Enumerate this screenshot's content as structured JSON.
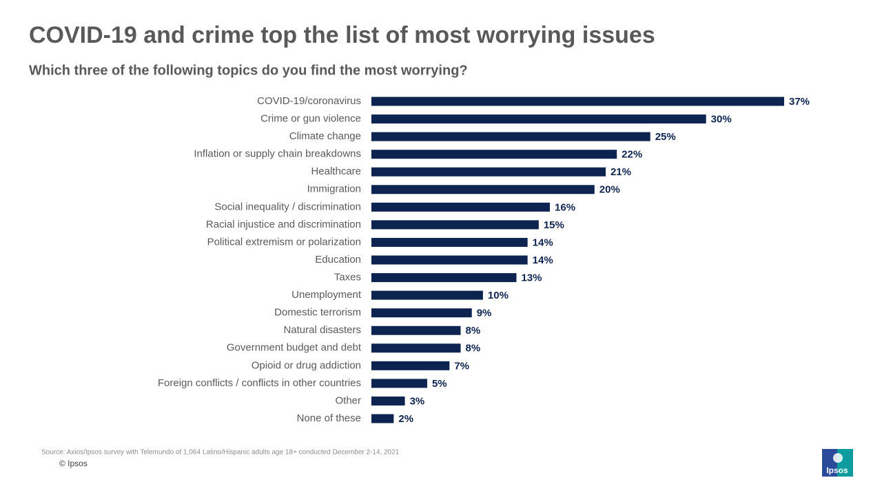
{
  "chart_data": {
    "type": "bar",
    "orientation": "horizontal",
    "title": "COVID-19 and crime top the list of most worrying issues",
    "subtitle": "Which three of the following topics do you find the most worrying?",
    "categories": [
      "COVID-19/coronavirus",
      "Crime or gun violence",
      "Climate change",
      "Inflation or supply chain breakdowns",
      "Healthcare",
      "Immigration",
      "Social inequality / discrimination",
      "Racial injustice and discrimination",
      "Political extremism or polarization",
      "Education",
      "Taxes",
      "Unemployment",
      "Domestic terrorism",
      "Natural disasters",
      "Government budget and debt",
      "Opioid or drug addiction",
      "Foreign conflicts / conflicts in other countries",
      "Other",
      "None of these"
    ],
    "values": [
      37,
      30,
      25,
      22,
      21,
      20,
      16,
      15,
      14,
      14,
      13,
      10,
      9,
      8,
      8,
      7,
      5,
      3,
      2
    ],
    "value_labels": [
      "37%",
      "30%",
      "25%",
      "22%",
      "21%",
      "20%",
      "16%",
      "15%",
      "14%",
      "14%",
      "13%",
      "10%",
      "9%",
      "8%",
      "8%",
      "7%",
      "5%",
      "3%",
      "2%"
    ],
    "color": "#0d2350"
  },
  "footer": {
    "source": "Source: Axios/Ipsos survey with Telemundo of 1,064 Latino/Hispanic adults age 18+ conducted December 2-14, 2021",
    "copyright": "© Ipsos",
    "logo": "Ipsos"
  }
}
